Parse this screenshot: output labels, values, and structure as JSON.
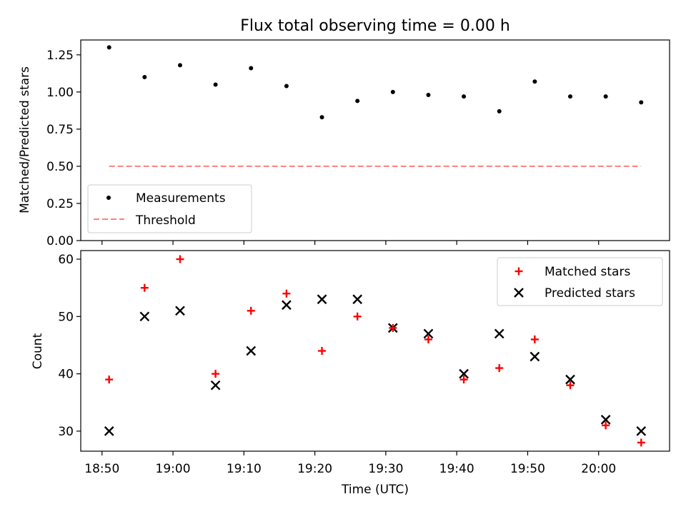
{
  "chart_data": [
    {
      "type": "scatter",
      "title": "Flux total observing time = 0.00 h",
      "xlabel": "",
      "ylabel": "Matched/Predicted stars",
      "x": [
        "18:51",
        "18:56",
        "19:01",
        "19:06",
        "19:11",
        "19:16",
        "19:21",
        "19:26",
        "19:31",
        "19:36",
        "19:41",
        "19:46",
        "19:51",
        "19:56",
        "20:01",
        "20:06"
      ],
      "series": [
        {
          "name": "Measurements",
          "marker": "dot",
          "color": "#000000",
          "values": [
            1.3,
            1.1,
            1.18,
            1.05,
            1.16,
            1.04,
            0.83,
            0.94,
            1.0,
            0.98,
            0.97,
            0.87,
            1.07,
            0.97,
            0.97,
            0.93
          ]
        },
        {
          "name": "Threshold",
          "marker": "dashed-line",
          "color": "#ff7f7f",
          "values": [
            0.5,
            0.5,
            0.5,
            0.5,
            0.5,
            0.5,
            0.5,
            0.5,
            0.5,
            0.5,
            0.5,
            0.5,
            0.5,
            0.5,
            0.5,
            0.5
          ]
        }
      ],
      "ylim": [
        0,
        1.35
      ],
      "yticks": [
        "0.00",
        "0.25",
        "0.50",
        "0.75",
        "1.00",
        "1.25"
      ],
      "legend": "lower-left",
      "grid": false
    },
    {
      "type": "scatter",
      "title": "",
      "xlabel": "Time (UTC)",
      "ylabel": "Count",
      "x": [
        "18:51",
        "18:56",
        "19:01",
        "19:06",
        "19:11",
        "19:16",
        "19:21",
        "19:26",
        "19:31",
        "19:36",
        "19:41",
        "19:46",
        "19:51",
        "19:56",
        "20:01",
        "20:06"
      ],
      "series": [
        {
          "name": "Matched stars",
          "marker": "plus",
          "color": "#ff0000",
          "values": [
            39,
            55,
            60,
            40,
            51,
            54,
            44,
            50,
            48,
            46,
            39,
            41,
            46,
            38,
            31,
            28
          ]
        },
        {
          "name": "Predicted stars",
          "marker": "x",
          "color": "#000000",
          "values": [
            30,
            50,
            51,
            38,
            44,
            52,
            53,
            53,
            48,
            47,
            40,
            47,
            43,
            39,
            32,
            30
          ]
        }
      ],
      "xlim": [
        "18:47",
        "20:10"
      ],
      "xticks": [
        "18:50",
        "19:00",
        "19:10",
        "19:20",
        "19:30",
        "19:40",
        "19:50",
        "20:00"
      ],
      "ylim": [
        26.5,
        61.5
      ],
      "yticks": [
        "30",
        "40",
        "50",
        "60"
      ],
      "legend": "upper-right",
      "grid": false
    }
  ]
}
